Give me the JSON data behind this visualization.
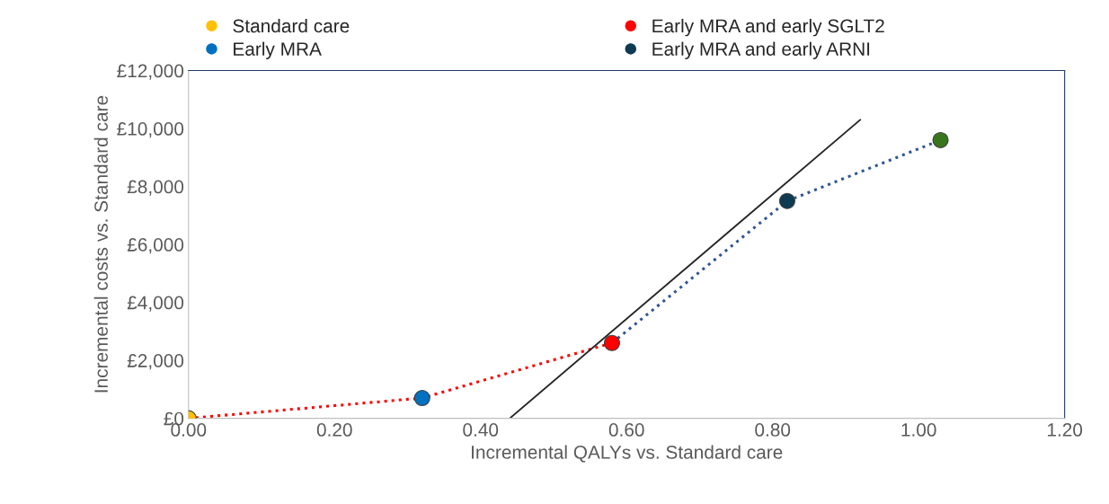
{
  "chart_data": {
    "type": "scatter",
    "xlabel": "Incremental QALYs vs. Standard care",
    "ylabel": "Incremental costs vs. Standard care",
    "series": [
      {
        "type": "line",
        "color": "#ff0000",
        "line_style": "dotted",
        "marker": "none",
        "x": [
          0,
          0.32,
          0.58
        ],
        "values": [
          0,
          700,
          2600
        ]
      },
      {
        "type": "line",
        "color": "#2f5597",
        "line_style": "dotted",
        "marker": "none",
        "x": [
          0.58,
          0.82,
          1.03
        ],
        "values": [
          2600,
          7500,
          9600
        ]
      },
      {
        "type": "line",
        "color": "#262626",
        "line_style": "solid",
        "marker": "none",
        "x": [
          0.44,
          0.92
        ],
        "values": [
          0,
          10300
        ]
      },
      {
        "name": "Standard care",
        "color": "#ffc000",
        "marker": "circle",
        "x": [
          0
        ],
        "values": [
          0
        ]
      },
      {
        "name": "Early MRA",
        "color": "#0070c0",
        "marker": "circle",
        "x": [
          0.32
        ],
        "values": [
          700
        ]
      },
      {
        "name": "Early MRA and early SGLT2",
        "color": "#ff0000",
        "marker": "circle",
        "x": [
          0.58
        ],
        "values": [
          2600
        ]
      },
      {
        "name": "Early MRA and early ARNI",
        "color": "#0e3a52",
        "marker": "circle",
        "x": [
          0.82
        ],
        "values": [
          7500
        ]
      },
      {
        "color": "#38761d",
        "marker": "circle",
        "x": [
          1.03
        ],
        "values": [
          9600
        ]
      }
    ],
    "xlim": [
      0,
      1.2
    ],
    "xticks": [
      {
        "value": 0,
        "label": "0.00"
      },
      {
        "value": 0.2,
        "label": "0.20"
      },
      {
        "value": 0.4,
        "label": "0.40"
      },
      {
        "value": 0.6,
        "label": "0.60"
      },
      {
        "value": 0.8,
        "label": "0.80"
      },
      {
        "value": 1.0,
        "label": "1.00"
      },
      {
        "value": 1.2,
        "label": "1.20"
      }
    ],
    "ylim": [
      0,
      12000
    ],
    "yticks": [
      {
        "value": 0,
        "label": "£0"
      },
      {
        "value": 2000,
        "label": "£2,000"
      },
      {
        "value": 4000,
        "label": "£4,000"
      },
      {
        "value": 6000,
        "label": "£6,000"
      },
      {
        "value": 8000,
        "label": "£8,000"
      },
      {
        "value": 10000,
        "label": "£10,000"
      },
      {
        "value": 12000,
        "label": "£12,000"
      }
    ],
    "grid": false,
    "legend": "top"
  }
}
